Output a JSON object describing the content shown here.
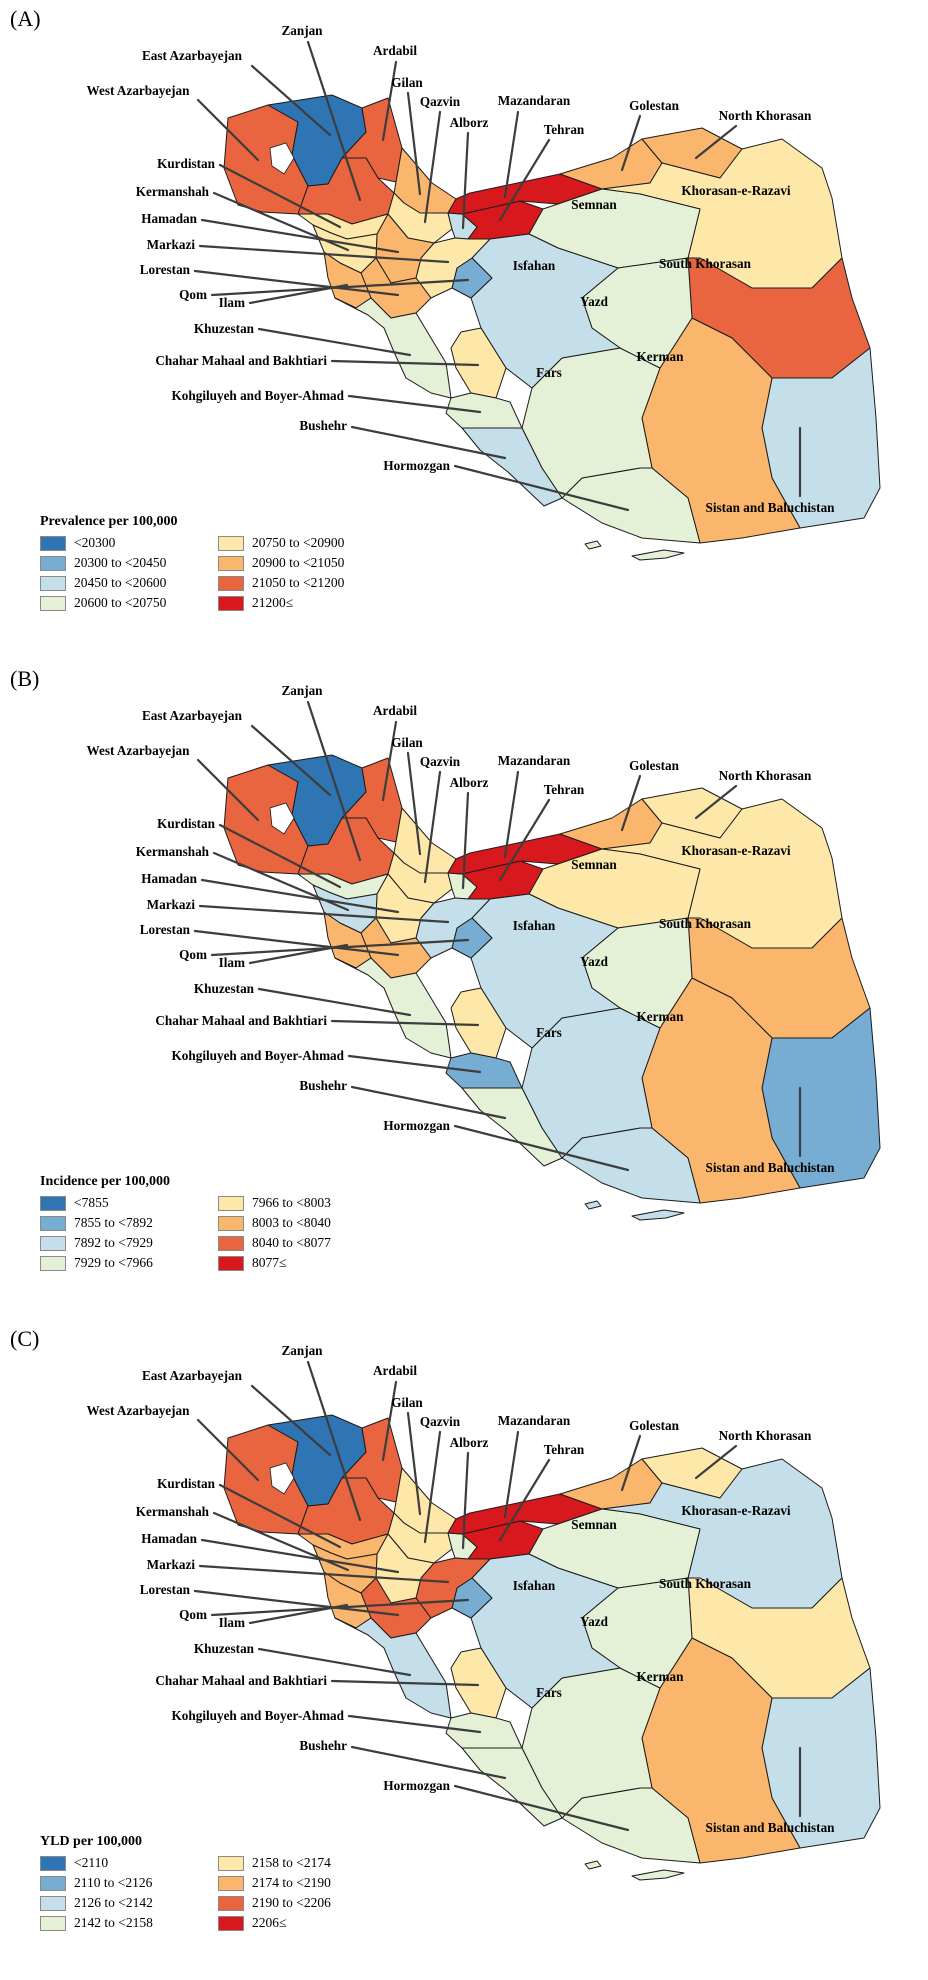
{
  "figure_title": "Iran province-level choropleth maps",
  "palette": {
    "1": "#2f74b3",
    "2": "#77add2",
    "3": "#c4dfe9",
    "4": "#e4f1d6",
    "5": "#fde8a9",
    "6": "#fbb66d",
    "7": "#e8653f",
    "8": "#d7191e"
  },
  "province_labels": {
    "west_azarbayejan": "West Azarbayejan",
    "east_azarbayejan": "East Azarbayejan",
    "ardabil": "Ardabil",
    "zanjan": "Zanjan",
    "gilan": "Gilan",
    "qazvin": "Qazvin",
    "alborz": "Alborz",
    "tehran": "Tehran",
    "mazandaran": "Mazandaran",
    "golestan": "Golestan",
    "north_khorasan": "North Khorasan",
    "khorasan_e_razavi": "Khorasan-e-Razavi",
    "semnan": "Semnan",
    "south_khorasan": "South Khorasan",
    "sistan_and_baluchistan": "Sistan and Baluchistan",
    "kerman": "Kerman",
    "hormozgan": "Hormozgan",
    "fars": "Fars",
    "yazd": "Yazd",
    "isfahan": "Isfahan",
    "qom": "Qom",
    "markazi": "Markazi",
    "hamadan": "Hamadan",
    "kurdistan": "Kurdistan",
    "kermanshah": "Kermanshah",
    "lorestan": "Lorestan",
    "ilam": "Ilam",
    "khuzestan": "Khuzestan",
    "chahar_mahaal_and_bakhtiari": "Chahar Mahaal and Bakhtiari",
    "kohgiluyeh_and_boyer_ahmad": "Kohgiluyeh and Boyer-Ahmad",
    "bushehr": "Bushehr"
  },
  "panels": [
    {
      "letter": "(A)",
      "legend_title": "Prevalence per 100,000",
      "legend_items": [
        "<20300",
        "20300 to <20450",
        "20450 to <20600",
        "20600 to <20750",
        "20750 to <20900",
        "20900 to <21050",
        "21050 to <21200",
        "21200≤"
      ]
    },
    {
      "letter": "(B)",
      "legend_title": "Incidence per 100,000",
      "legend_items": [
        "<7855",
        "7855 to <7892",
        "7892 to <7929",
        "7929 to <7966",
        "7966 to <8003",
        "8003 to <8040",
        "8040 to <8077",
        "8077≤"
      ]
    },
    {
      "letter": "(C)",
      "legend_title": "YLD per 100,000",
      "legend_items": [
        "<2110",
        "2110 to <2126",
        "2126 to <2142",
        "2142 to <2158",
        "2158 to <2174",
        "2174 to <2190",
        "2190 to <2206",
        "2206≤"
      ]
    }
  ],
  "chart_data": {
    "type": "heatmap",
    "subtype": "choropleth_map_iran_provinces",
    "note": "Three panels share one geography; values are legend bin indices 1-8 (1=lowest/dark blue, 8=highest/red) mapping to panels[].legend_items",
    "maps": [
      {
        "panel": "A",
        "title": "Prevalence per 100,000",
        "values": {
          "west_azarbayejan": 7,
          "east_azarbayejan": 1,
          "ardabil": 7,
          "zanjan": 7,
          "gilan": 6,
          "qazvin": 5,
          "alborz": 3,
          "tehran": 8,
          "mazandaran": 8,
          "golestan": 6,
          "north_khorasan": 6,
          "khorasan_e_razavi": 5,
          "semnan": 4,
          "south_khorasan": 7,
          "sistan_and_baluchistan": 3,
          "kerman": 6,
          "hormozgan": 4,
          "fars": 4,
          "yazd": 4,
          "isfahan": 3,
          "qom": 2,
          "markazi": 5,
          "hamadan": 6,
          "kurdistan": 5,
          "kermanshah": 5,
          "lorestan": 6,
          "ilam": 6,
          "khuzestan": 4,
          "chahar_mahaal_and_bakhtiari": 5,
          "kohgiluyeh_and_boyer_ahmad": 4,
          "bushehr": 3
        }
      },
      {
        "panel": "B",
        "title": "Incidence per 100,000",
        "values": {
          "west_azarbayejan": 7,
          "east_azarbayejan": 1,
          "ardabil": 7,
          "zanjan": 7,
          "gilan": 5,
          "qazvin": 5,
          "alborz": 4,
          "tehran": 8,
          "mazandaran": 8,
          "golestan": 6,
          "north_khorasan": 5,
          "khorasan_e_razavi": 5,
          "semnan": 5,
          "south_khorasan": 6,
          "sistan_and_baluchistan": 2,
          "kerman": 6,
          "hormozgan": 3,
          "fars": 3,
          "yazd": 4,
          "isfahan": 3,
          "qom": 2,
          "markazi": 3,
          "hamadan": 5,
          "kurdistan": 4,
          "kermanshah": 3,
          "lorestan": 6,
          "ilam": 6,
          "khuzestan": 4,
          "chahar_mahaal_and_bakhtiari": 5,
          "kohgiluyeh_and_boyer_ahmad": 2,
          "bushehr": 4
        }
      },
      {
        "panel": "C",
        "title": "YLD per 100,000",
        "values": {
          "west_azarbayejan": 7,
          "east_azarbayejan": 1,
          "ardabil": 7,
          "zanjan": 7,
          "gilan": 5,
          "qazvin": 5,
          "alborz": 4,
          "tehran": 8,
          "mazandaran": 8,
          "golestan": 6,
          "north_khorasan": 5,
          "khorasan_e_razavi": 3,
          "semnan": 4,
          "south_khorasan": 5,
          "sistan_and_baluchistan": 3,
          "kerman": 6,
          "hormozgan": 4,
          "fars": 4,
          "yazd": 4,
          "isfahan": 3,
          "qom": 2,
          "markazi": 7,
          "hamadan": 5,
          "kurdistan": 6,
          "kermanshah": 6,
          "lorestan": 7,
          "ilam": 6,
          "khuzestan": 3,
          "chahar_mahaal_and_bakhtiari": 5,
          "kohgiluyeh_and_boyer_ahmad": 4,
          "bushehr": 4
        }
      }
    ]
  }
}
